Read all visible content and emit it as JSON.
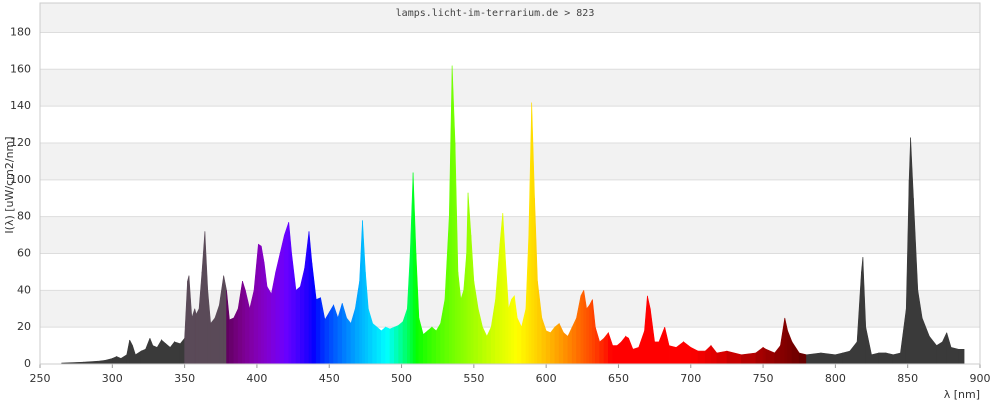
{
  "chart_data": {
    "type": "spectrum",
    "title": "lamps.licht-im-terrarium.de > 823",
    "xlabel": "λ [nm]",
    "ylabel": "I(λ)  [uW/cm2/nm]",
    "xlim": [
      250,
      900
    ],
    "ylim": [
      0,
      196
    ],
    "xticks": [
      250,
      300,
      350,
      400,
      450,
      500,
      550,
      600,
      650,
      700,
      750,
      800,
      850,
      900
    ],
    "yticks": [
      0,
      20,
      40,
      60,
      80,
      100,
      120,
      140,
      160,
      180
    ],
    "grid": true,
    "band_color": "#f2f2f2",
    "ultraviolet_color": "#3a3a3a",
    "near_uv_color": "#5a4a58",
    "infrared_color": "#3a3a3a",
    "x": [
      265,
      280,
      290,
      295,
      300,
      303,
      306,
      310,
      312,
      314,
      316,
      320,
      323,
      326,
      328,
      331,
      334,
      337,
      340,
      343,
      347,
      350,
      352,
      353,
      355,
      357,
      358,
      360,
      362,
      364,
      366,
      368,
      371,
      374,
      377,
      379,
      381,
      384,
      387,
      390,
      392,
      395,
      398,
      401,
      403,
      405,
      407,
      410,
      413,
      416,
      419,
      422,
      424,
      427,
      430,
      433,
      436,
      438,
      441,
      444,
      447,
      450,
      453,
      456,
      459,
      462,
      465,
      468,
      471,
      473,
      475,
      477,
      480,
      483,
      486,
      489,
      492,
      495,
      498,
      501,
      504,
      506,
      508,
      510,
      512,
      515,
      518,
      521,
      524,
      527,
      530,
      533,
      535,
      537,
      539,
      541,
      543,
      545,
      546,
      548,
      550,
      553,
      556,
      559,
      562,
      565,
      568,
      570,
      572,
      574,
      576,
      578,
      580,
      583,
      586,
      588,
      590,
      592,
      594,
      597,
      600,
      603,
      606,
      609,
      612,
      615,
      618,
      621,
      624,
      626,
      628,
      630,
      632,
      634,
      637,
      640,
      643,
      646,
      649,
      652,
      655,
      657,
      660,
      664,
      668,
      670,
      672,
      675,
      678,
      682,
      685,
      690,
      695,
      700,
      705,
      710,
      714,
      718,
      725,
      735,
      745,
      750,
      752,
      758,
      762,
      765,
      767,
      770,
      775,
      780,
      790,
      800,
      805,
      810,
      815,
      818,
      819,
      821,
      825,
      830,
      835,
      840,
      845,
      849,
      851,
      852,
      854,
      857,
      860,
      865,
      870,
      874,
      877,
      880,
      885,
      889
    ],
    "values": [
      0.5,
      1,
      1.5,
      2,
      3,
      4,
      3,
      5,
      13,
      10,
      5,
      7,
      8,
      14,
      10,
      9,
      13,
      11,
      9,
      12,
      11,
      14,
      45,
      48,
      25,
      30,
      27,
      30,
      50,
      72,
      40,
      22,
      25,
      32,
      48,
      40,
      24,
      25,
      30,
      45,
      40,
      30,
      40,
      65,
      64,
      55,
      42,
      38,
      50,
      60,
      70,
      77,
      60,
      40,
      42,
      52,
      72,
      55,
      35,
      36,
      24,
      28,
      32,
      25,
      33,
      25,
      22,
      30,
      45,
      78,
      50,
      30,
      22,
      20,
      18,
      20,
      19,
      20,
      21,
      23,
      30,
      60,
      104,
      60,
      25,
      16,
      18,
      20,
      18,
      22,
      35,
      80,
      162,
      120,
      50,
      35,
      40,
      60,
      93,
      70,
      45,
      30,
      20,
      15,
      20,
      35,
      65,
      82,
      55,
      30,
      35,
      37,
      25,
      20,
      30,
      70,
      142,
      90,
      45,
      25,
      18,
      17,
      20,
      22,
      17,
      15,
      20,
      25,
      37,
      40,
      30,
      32,
      35,
      20,
      12,
      14,
      17,
      10,
      10,
      12,
      15,
      14,
      8,
      9,
      18,
      37,
      30,
      12,
      12,
      20,
      10,
      9,
      12,
      9,
      7,
      7,
      10,
      6,
      7,
      5,
      6,
      9,
      8,
      6,
      10,
      25,
      18,
      12,
      6,
      5,
      6,
      5,
      6,
      7,
      12,
      50,
      58,
      20,
      5,
      6,
      6,
      5,
      6,
      30,
      100,
      123,
      90,
      40,
      25,
      15,
      10,
      12,
      17,
      9,
      8,
      8
    ]
  }
}
